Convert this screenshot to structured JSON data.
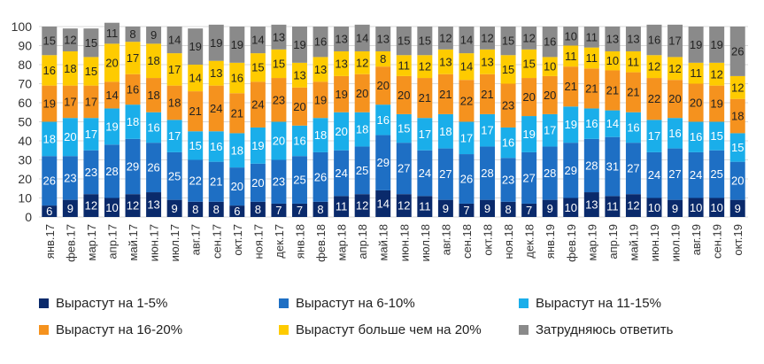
{
  "chart_data": {
    "type": "bar",
    "stacked": true,
    "ylim": [
      0,
      100
    ],
    "yticks": [
      0,
      10,
      20,
      30,
      40,
      50,
      60,
      70,
      80,
      90,
      100
    ],
    "grid": "horizontal",
    "legend_position": "bottom",
    "categories": [
      "янв.17",
      "фев.17",
      "мар.17",
      "апр.17",
      "май.17",
      "июн.17",
      "июл.17",
      "авг.17",
      "сен.17",
      "окт.17",
      "ноя.17",
      "дек.17",
      "янв.18",
      "фев.18",
      "мар.18",
      "апр.18",
      "май.18",
      "июн.18",
      "июл.18",
      "авг.18",
      "сен.18",
      "окт.18",
      "ноя.18",
      "дек.18",
      "янв.19",
      "фев.19",
      "мар.19",
      "апр.19",
      "май.19",
      "июн.19",
      "июл.19",
      "авг.19",
      "сен.19",
      "окт.19"
    ],
    "series": [
      {
        "name": "Вырастут на 1-5%",
        "color": "#0a2a6b",
        "label_color": "#ffffff",
        "values": [
          6,
          9,
          12,
          10,
          12,
          13,
          9,
          8,
          8,
          6,
          8,
          7,
          7,
          8,
          11,
          12,
          14,
          12,
          11,
          9,
          7,
          9,
          8,
          7,
          9,
          10,
          13,
          11,
          12,
          10,
          9,
          10,
          10,
          9
        ]
      },
      {
        "name": "Вырастут на 6-10%",
        "color": "#1e6fc4",
        "label_color": "#ffffff",
        "values": [
          26,
          23,
          23,
          28,
          29,
          26,
          25,
          22,
          21,
          20,
          20,
          23,
          25,
          26,
          24,
          25,
          29,
          27,
          24,
          27,
          26,
          28,
          23,
          27,
          28,
          29,
          28,
          31,
          27,
          24,
          27,
          24,
          25,
          20
        ]
      },
      {
        "name": "Вырастут на 11-15%",
        "color": "#1aaeea",
        "label_color": "#ffffff",
        "values": [
          18,
          20,
          17,
          19,
          18,
          16,
          17,
          15,
          16,
          18,
          19,
          20,
          16,
          18,
          20,
          18,
          16,
          15,
          17,
          18,
          17,
          17,
          16,
          19,
          17,
          19,
          16,
          14,
          16,
          17,
          16,
          16,
          15,
          15
        ]
      },
      {
        "name": "Вырастут на 16-20%",
        "color": "#f5921e",
        "label_color": "#222222",
        "values": [
          19,
          17,
          17,
          14,
          16,
          18,
          18,
          21,
          24,
          21,
          24,
          23,
          20,
          19,
          19,
          20,
          20,
          20,
          21,
          21,
          22,
          21,
          23,
          20,
          20,
          21,
          21,
          21,
          21,
          22,
          20,
          20,
          19,
          18
        ]
      },
      {
        "name": "Вырастут больше чем на 20%",
        "color": "#fecb00",
        "label_color": "#222222",
        "values": [
          16,
          18,
          15,
          20,
          17,
          18,
          17,
          14,
          13,
          16,
          15,
          15,
          13,
          13,
          13,
          12,
          8,
          11,
          12,
          13,
          14,
          13,
          15,
          15,
          10,
          11,
          11,
          10,
          11,
          12,
          12,
          11,
          12,
          12
        ]
      },
      {
        "name": "Затрудняюсь ответить",
        "color": "#8a8a8a",
        "label_color": "#222222",
        "values": [
          15,
          12,
          15,
          11,
          8,
          9,
          14,
          19,
          19,
          19,
          14,
          13,
          19,
          16,
          13,
          14,
          13,
          15,
          15,
          12,
          14,
          12,
          15,
          12,
          16,
          10,
          11,
          13,
          13,
          16,
          17,
          19,
          19,
          26
        ]
      }
    ]
  }
}
